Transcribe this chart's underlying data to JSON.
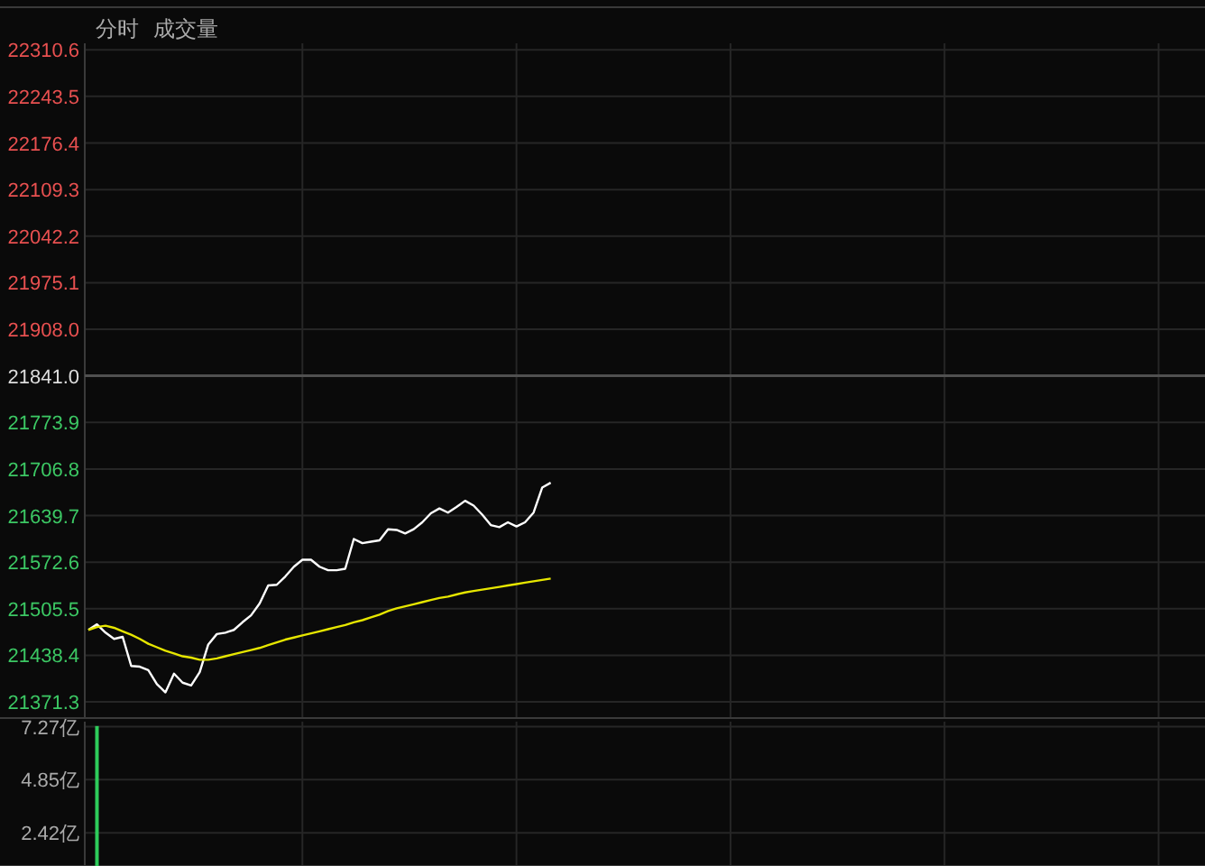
{
  "chart_data": [
    {
      "type": "line",
      "annotations": [
        "分时",
        "成交量"
      ],
      "categories": [
        null,
        null,
        null,
        null,
        null,
        null,
        null,
        null,
        null,
        null,
        null,
        null,
        null,
        null,
        null,
        null,
        null,
        null,
        null,
        null,
        null,
        null,
        null,
        null,
        null,
        null,
        null,
        null,
        null,
        null,
        null,
        null,
        null,
        null,
        null,
        null,
        null,
        null,
        null,
        null,
        null,
        null,
        null,
        null,
        null,
        null,
        null,
        null,
        null,
        null,
        null,
        null,
        null,
        null,
        null,
        null,
        null,
        null,
        null,
        null,
        null,
        null,
        null,
        null,
        null,
        null,
        null,
        null,
        null,
        null,
        null,
        null,
        null,
        null,
        null,
        null,
        null,
        null,
        null,
        null,
        null,
        null,
        null,
        null,
        null,
        null,
        null,
        null,
        null,
        null,
        null,
        null,
        null,
        null,
        null,
        null,
        null,
        null,
        null,
        null,
        null,
        null,
        null,
        null,
        null,
        null,
        null,
        null,
        null,
        null,
        null,
        null,
        null,
        null,
        null,
        null,
        null,
        null,
        null,
        null,
        null,
        null,
        null,
        null,
        null,
        null,
        null,
        null,
        null,
        null,
        null
      ],
      "ylim": [
        21348,
        22320
      ],
      "yticks": [
        21371.3,
        21438.4,
        21505.5,
        21572.6,
        21639.7,
        21706.8,
        21773.9,
        {
          "value": 21841,
          "label": "21841.0"
        },
        {
          "value": 21908,
          "label": "21908.0"
        },
        21975.1,
        22042.2,
        22109.3,
        22176.4,
        22243.5,
        22310.6
      ],
      "grid": true,
      "ref_lines": [
        {
          "axis": "y",
          "value": 21841,
          "color": "#505050"
        }
      ],
      "series": [
        {
          "color": "#ffffff",
          "values": [
            21475,
            21483,
            21471,
            21462,
            21465,
            21423,
            21422,
            21417,
            21397,
            21385,
            21412,
            21399,
            21395,
            21414,
            21454,
            21469,
            21471,
            21475,
            21486,
            21496,
            21513,
            21539,
            21540,
            21552,
            21566,
            21576,
            21576,
            21566,
            21561,
            21561,
            21563,
            21606,
            21600,
            21602,
            21604,
            21620,
            21619,
            21614,
            21620,
            21630,
            21643,
            21650,
            21644,
            21652,
            21661,
            21654,
            21641,
            21626,
            21623,
            21630,
            21624,
            21630,
            21644,
            21680,
            21687,
            null,
            null,
            null,
            null,
            null,
            null,
            null,
            null,
            null,
            null,
            null,
            null,
            null,
            null,
            null,
            null,
            null,
            null,
            null,
            null,
            null,
            null,
            null,
            null,
            null,
            null,
            null,
            null,
            null,
            null,
            null,
            null,
            null,
            null,
            null,
            null,
            null,
            null,
            null,
            null,
            null,
            null,
            null,
            null,
            null,
            null,
            null,
            null,
            null,
            null,
            null,
            null,
            null,
            null,
            null,
            null,
            null,
            null,
            null,
            null,
            null,
            null,
            null,
            null,
            null,
            null,
            null,
            null,
            null,
            null,
            null,
            null,
            null,
            null,
            null,
            null
          ]
        },
        {
          "color": "#e6e600",
          "values": [
            21475,
            21479,
            21481,
            21478,
            21473,
            21468,
            21462,
            21455,
            21450,
            21445,
            21441,
            21437,
            21435,
            21432,
            21432,
            21434,
            21437,
            21440,
            21443,
            21446,
            21449,
            21453,
            21457,
            21461,
            21464,
            21467,
            21470,
            21473,
            21476,
            21479,
            21482,
            21486,
            21489,
            21493,
            21497,
            21502,
            21506,
            21509,
            21512,
            21515,
            21518,
            21521,
            21523,
            21526,
            21529,
            21531,
            21533,
            21535,
            21537,
            21539,
            21541,
            21543,
            21545,
            21547,
            21549,
            null,
            null,
            null,
            null,
            null,
            null,
            null,
            null,
            null,
            null,
            null,
            null,
            null,
            null,
            null,
            null,
            null,
            null,
            null,
            null,
            null,
            null,
            null,
            null,
            null,
            null,
            null,
            null,
            null,
            null,
            null,
            null,
            null,
            null,
            null,
            null,
            null,
            null,
            null,
            null,
            null,
            null,
            null,
            null,
            null,
            null,
            null,
            null,
            null,
            null,
            null,
            null,
            null,
            null,
            null,
            null,
            null,
            null,
            null,
            null,
            null,
            null,
            null,
            null,
            null,
            null,
            null,
            null,
            null,
            null,
            null,
            null,
            null,
            null,
            null,
            null
          ]
        }
      ]
    },
    {
      "type": "bar",
      "categories": [
        null,
        null,
        null,
        null,
        null,
        null,
        null,
        null,
        null,
        null,
        null,
        null,
        null,
        null,
        null,
        null,
        null,
        null,
        null,
        null,
        null,
        null,
        null,
        null,
        null,
        null,
        null,
        null,
        null,
        null,
        null,
        null,
        null,
        null,
        null,
        null,
        null,
        null,
        null,
        null,
        null,
        null,
        null,
        null,
        null,
        null,
        null,
        null,
        null,
        null,
        null,
        null,
        null,
        null,
        null,
        null,
        null,
        null,
        null,
        null,
        null,
        null,
        null,
        null,
        null,
        null,
        null,
        null,
        null,
        null,
        null,
        null,
        null,
        null,
        null,
        null,
        null,
        null,
        null,
        null,
        null,
        null,
        null,
        null,
        null,
        null,
        null,
        null,
        null,
        null,
        null,
        null,
        null,
        null,
        null,
        null,
        null,
        null,
        null,
        null,
        null,
        null,
        null,
        null,
        null,
        null,
        null,
        null,
        null,
        null,
        null,
        null,
        null,
        null,
        null,
        null,
        null,
        null,
        null,
        null,
        null,
        null,
        null,
        null,
        null,
        null,
        null,
        null,
        null,
        null,
        null
      ],
      "values": [
        null,
        7.3,
        null,
        null,
        null,
        null,
        null,
        null,
        null,
        null,
        null,
        null,
        null,
        null,
        null,
        null,
        null,
        null,
        null,
        null,
        null,
        null,
        null,
        null,
        null,
        null,
        null,
        null,
        null,
        null,
        null,
        null,
        null,
        null,
        null,
        null,
        null,
        null,
        null,
        null,
        null,
        null,
        null,
        null,
        null,
        null,
        null,
        null,
        null,
        null,
        null,
        null,
        null,
        null,
        null,
        null,
        null,
        null,
        null,
        null,
        null,
        null,
        null,
        null,
        null,
        null,
        null,
        null,
        null,
        null,
        null,
        null,
        null,
        null,
        null,
        null,
        null,
        null,
        null,
        null,
        null,
        null,
        null,
        null,
        null,
        null,
        null,
        null,
        null,
        null,
        null,
        null,
        null,
        null,
        null,
        null,
        null,
        null,
        null,
        null,
        null,
        null,
        null,
        null,
        null,
        null,
        null,
        null,
        null,
        null,
        null,
        null,
        null,
        null,
        null,
        null,
        null,
        null,
        null,
        null,
        null,
        null,
        null,
        null,
        null,
        null,
        null,
        null,
        null,
        null,
        null
      ],
      "color": "#2ecc5a",
      "ylim": [
        0.9,
        7.5
      ],
      "yticks": [
        {
          "value": 2.42,
          "label": "2.42亿"
        },
        {
          "value": 4.85,
          "label": "4.85亿"
        },
        {
          "value": 7.27,
          "label": "7.27亿"
        }
      ],
      "grid": true
    }
  ]
}
